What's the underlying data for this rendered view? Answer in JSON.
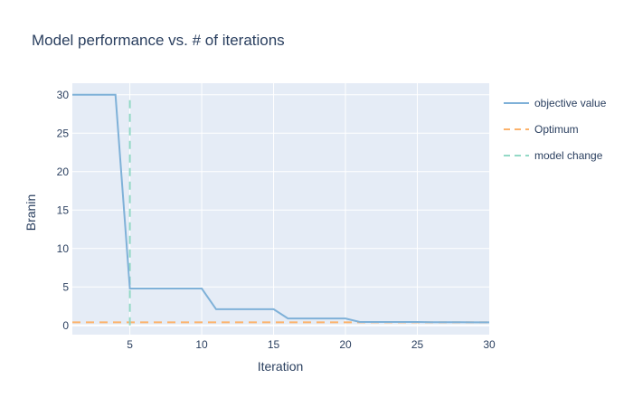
{
  "chart_data": {
    "type": "line",
    "title": "Model performance vs. # of iterations",
    "xlabel": "Iteration",
    "ylabel": "Branin",
    "xlim": [
      1,
      30
    ],
    "ylim": [
      -1.2,
      31.5
    ],
    "xticks": [
      5,
      10,
      15,
      20,
      25,
      30
    ],
    "yticks": [
      0,
      5,
      10,
      15,
      20,
      25,
      30
    ],
    "grid": true,
    "legend_position": "right",
    "series": [
      {
        "name": "objective value",
        "color": "#7fb1d8",
        "style": "solid",
        "x": [
          1,
          2,
          3,
          4,
          5,
          6,
          7,
          8,
          9,
          10,
          11,
          12,
          13,
          14,
          15,
          16,
          17,
          18,
          19,
          20,
          21,
          22,
          23,
          24,
          25,
          26,
          27,
          28,
          29,
          30
        ],
        "y": [
          30,
          30,
          30,
          30,
          4.8,
          4.8,
          4.8,
          4.8,
          4.8,
          4.8,
          2.1,
          2.1,
          2.1,
          2.1,
          2.1,
          0.9,
          0.9,
          0.9,
          0.9,
          0.9,
          0.45,
          0.45,
          0.45,
          0.45,
          0.45,
          0.42,
          0.42,
          0.42,
          0.4,
          0.4
        ]
      },
      {
        "name": "Optimum",
        "color": "#fcb26b",
        "style": "dash",
        "x": [
          1,
          30
        ],
        "y": [
          0.398,
          0.398
        ]
      },
      {
        "name": "model change",
        "color": "#93d9c6",
        "style": "dash",
        "x": [
          5,
          5
        ],
        "y": [
          0,
          30
        ]
      }
    ]
  }
}
